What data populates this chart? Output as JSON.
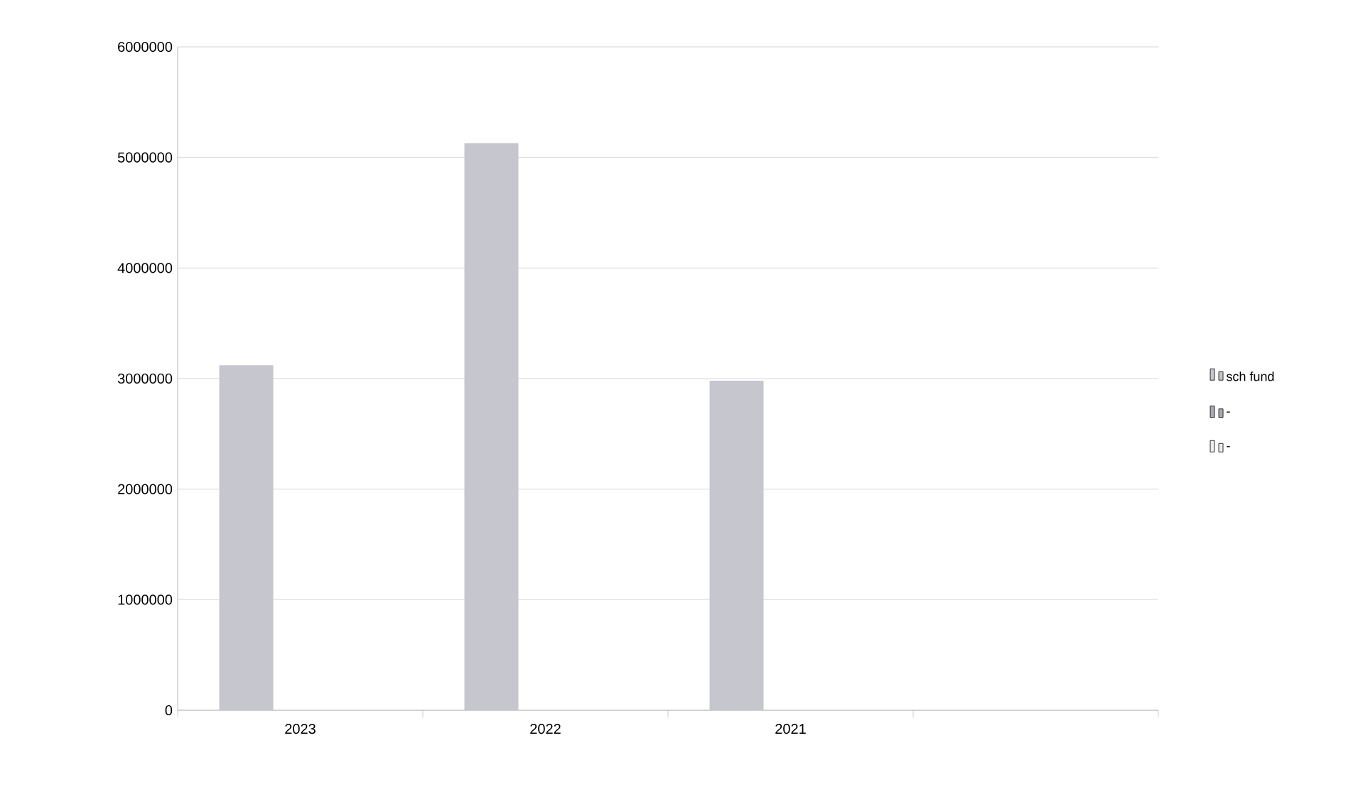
{
  "chart_data": {
    "type": "bar",
    "categories": [
      "2023",
      "2022",
      "2021",
      null
    ],
    "series": [
      {
        "name": "sch fund",
        "color": "#c6c6ce",
        "values": [
          3120000,
          5130000,
          2980000,
          null
        ]
      },
      {
        "name": "-",
        "color": "#a9a9b1",
        "values": [
          null,
          null,
          null,
          null
        ]
      },
      {
        "name": "-",
        "color": "#ececf0",
        "values": [
          null,
          null,
          null,
          null
        ]
      }
    ],
    "ylim": [
      0,
      6000000
    ],
    "yticks": [
      0,
      1000000,
      2000000,
      3000000,
      4000000,
      5000000,
      6000000
    ],
    "grid": "y",
    "legend": "right"
  }
}
